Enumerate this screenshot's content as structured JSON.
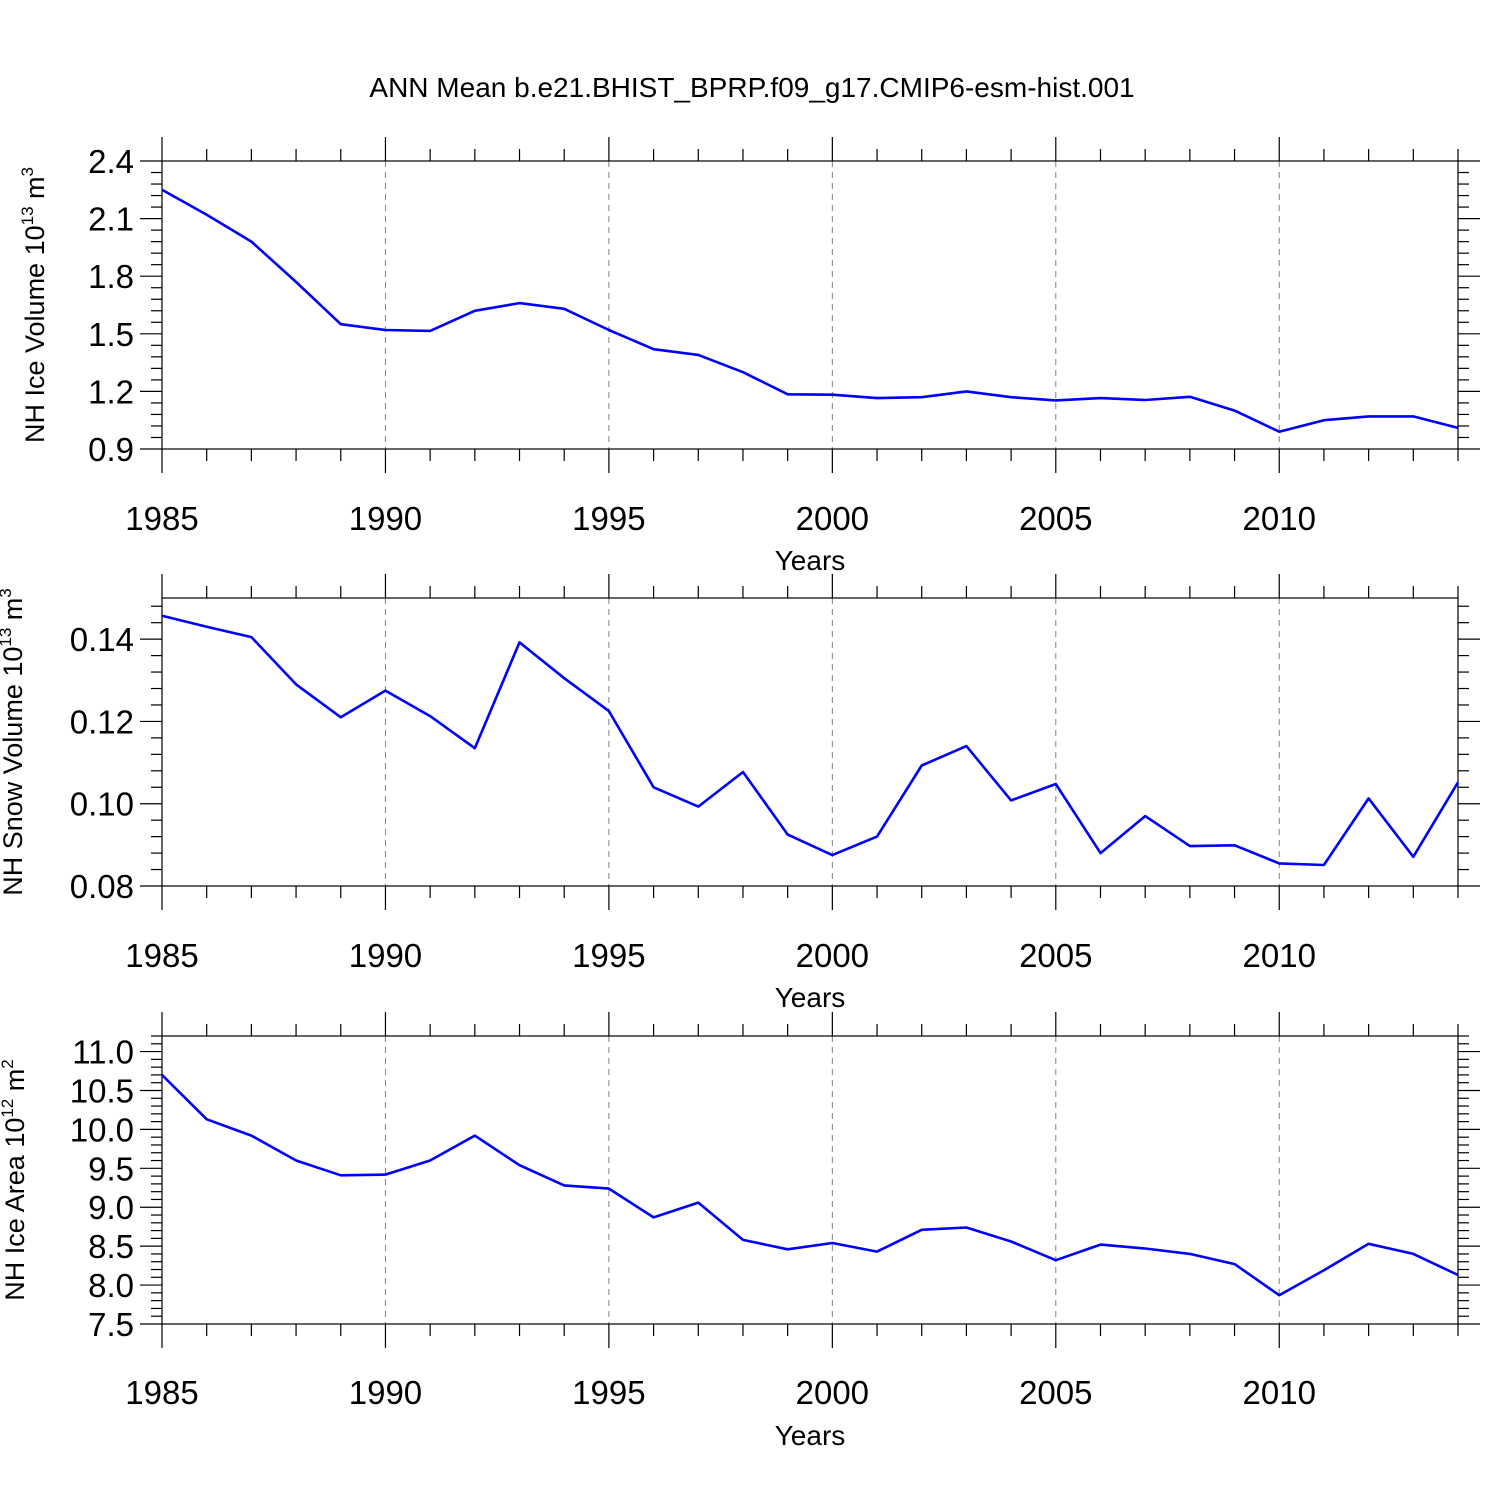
{
  "figure": {
    "title": "ANN Mean b.e21.BHIST_BPRP.f09_g17.CMIP6-esm-hist.001"
  },
  "colors": {
    "series_line": "#0000ff",
    "axis": "#000000",
    "grid": "#808080"
  },
  "chart_data": [
    {
      "type": "line",
      "ylabel": {
        "prefix": "NH Ice Volume 10",
        "exp": "13",
        "unit": " m",
        "unit_exp": "3"
      },
      "xlabel": "Years",
      "xlim": [
        1985,
        2014
      ],
      "ylim": [
        0.9,
        2.4
      ],
      "xticks": [
        1985,
        1990,
        1995,
        2000,
        2005,
        2010
      ],
      "yticks": [
        "0.9",
        "1.2",
        "1.5",
        "1.8",
        "2.1",
        "2.4"
      ],
      "ytick_values": [
        0.9,
        1.2,
        1.5,
        1.8,
        2.1,
        2.4
      ],
      "grid": "vertical dashed at major x ticks",
      "x": [
        1985,
        1986,
        1987,
        1988,
        1989,
        1990,
        1991,
        1992,
        1993,
        1994,
        1995,
        1996,
        1997,
        1998,
        1999,
        2000,
        2001,
        2002,
        2003,
        2004,
        2005,
        2006,
        2007,
        2008,
        2009,
        2010,
        2011,
        2012,
        2013,
        2014
      ],
      "values": [
        2.25,
        2.12,
        1.98,
        1.77,
        1.55,
        1.52,
        1.515,
        1.62,
        1.66,
        1.63,
        1.52,
        1.42,
        1.39,
        1.3,
        1.185,
        1.183,
        1.165,
        1.17,
        1.2,
        1.17,
        1.153,
        1.165,
        1.155,
        1.172,
        1.1,
        0.99,
        1.05,
        1.07,
        1.07,
        1.01
      ]
    },
    {
      "type": "line",
      "ylabel": {
        "prefix": "NH Snow Volume 10",
        "exp": "13",
        "unit": " m",
        "unit_exp": "3"
      },
      "xlabel": "Years",
      "xlim": [
        1985,
        2014
      ],
      "ylim": [
        0.08,
        0.15
      ],
      "xticks": [
        1985,
        1990,
        1995,
        2000,
        2005,
        2010
      ],
      "yticks": [
        "0.08",
        "0.10",
        "0.12",
        "0.14"
      ],
      "ytick_values": [
        0.08,
        0.1,
        0.12,
        0.14
      ],
      "grid": "vertical dashed at major x ticks",
      "x": [
        1985,
        1986,
        1987,
        1988,
        1989,
        1990,
        1991,
        1992,
        1993,
        1994,
        1995,
        1996,
        1997,
        1998,
        1999,
        2000,
        2001,
        2002,
        2003,
        2004,
        2005,
        2006,
        2007,
        2008,
        2009,
        2010,
        2011,
        2012,
        2013,
        2014
      ],
      "values": [
        0.1457,
        0.143,
        0.1405,
        0.129,
        0.121,
        0.1275,
        0.1213,
        0.1135,
        0.1392,
        0.1305,
        0.1225,
        0.104,
        0.0993,
        0.1077,
        0.0925,
        0.0875,
        0.092,
        0.1093,
        0.114,
        0.1008,
        0.1048,
        0.088,
        0.097,
        0.0897,
        0.0899,
        0.0855,
        0.0851,
        0.1013,
        0.0871,
        0.1052
      ]
    },
    {
      "type": "line",
      "ylabel": {
        "prefix": "NH Ice Area 10",
        "exp": "12",
        "unit": " m",
        "unit_exp": "2"
      },
      "xlabel": "Years",
      "xlim": [
        1985,
        2014
      ],
      "ylim": [
        7.5,
        11.2
      ],
      "xticks": [
        1985,
        1990,
        1995,
        2000,
        2005,
        2010
      ],
      "yticks": [
        "7.5",
        "8.0",
        "8.5",
        "9.0",
        "9.5",
        "10.0",
        "10.5",
        "11.0"
      ],
      "ytick_values": [
        7.5,
        8.0,
        8.5,
        9.0,
        9.5,
        10.0,
        10.5,
        11.0
      ],
      "grid": "vertical dashed at major x ticks",
      "x": [
        1985,
        1986,
        1987,
        1988,
        1989,
        1990,
        1991,
        1992,
        1993,
        1994,
        1995,
        1996,
        1997,
        1998,
        1999,
        2000,
        2001,
        2002,
        2003,
        2004,
        2005,
        2006,
        2007,
        2008,
        2009,
        2010,
        2011,
        2012,
        2013,
        2014
      ],
      "values": [
        10.7,
        10.13,
        9.92,
        9.6,
        9.41,
        9.42,
        9.6,
        9.92,
        9.54,
        9.28,
        9.24,
        8.87,
        9.06,
        8.58,
        8.46,
        8.54,
        8.43,
        8.71,
        8.74,
        8.56,
        8.32,
        8.52,
        8.47,
        8.4,
        8.27,
        7.87,
        8.19,
        8.53,
        8.4,
        8.13
      ]
    }
  ]
}
